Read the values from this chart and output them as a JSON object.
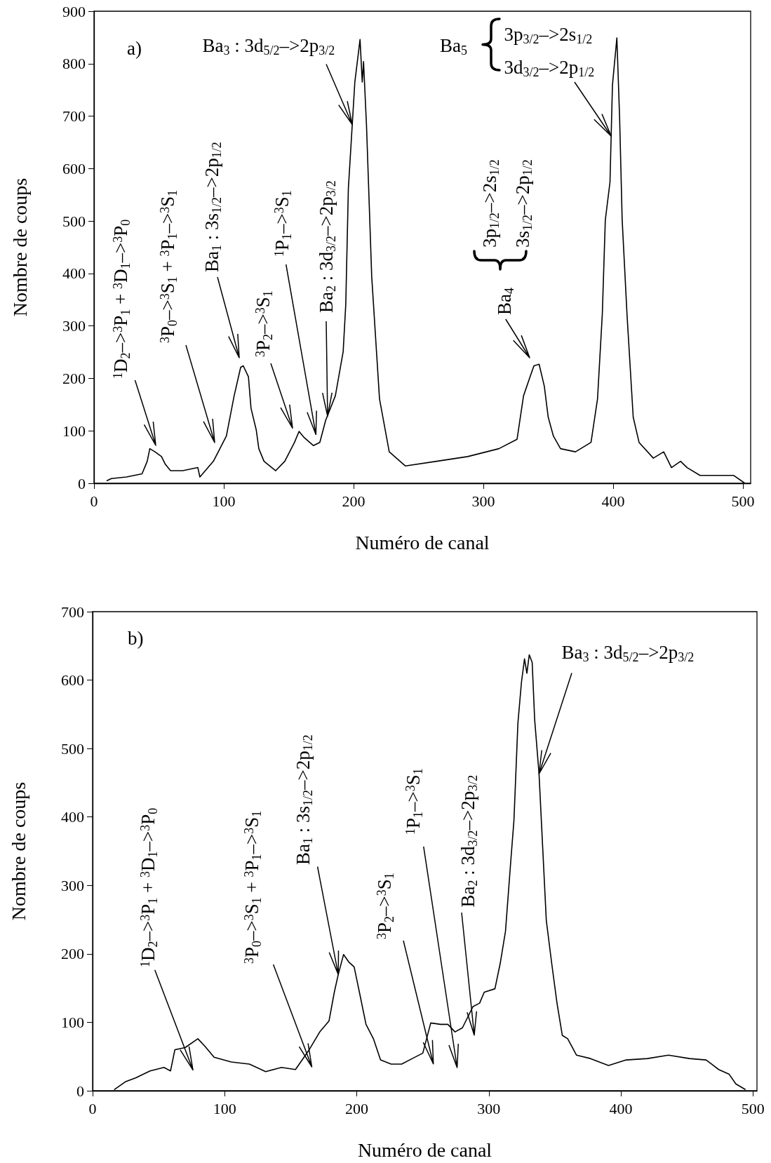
{
  "chart_data": [
    {
      "type": "line",
      "title": "a)",
      "xlabel": "Numéro de canal",
      "ylabel": "Nombre de coups",
      "color": "#000000",
      "marker": "none",
      "line_style": "solid",
      "grid": false,
      "xlim": [
        0,
        506
      ],
      "xticks": [
        0,
        100,
        200,
        300,
        400,
        500
      ],
      "ylim": [
        0,
        900
      ],
      "yticks": [
        0,
        100,
        200,
        300,
        400,
        500,
        600,
        700,
        800,
        900
      ],
      "x": [
        10,
        13.4,
        25,
        37,
        41,
        43,
        47,
        52,
        55,
        59,
        68.4,
        80,
        81.6,
        92,
        102,
        108,
        113,
        115,
        119,
        121,
        125,
        127,
        131,
        140,
        147,
        154.5,
        158,
        162,
        169,
        174,
        178.5,
        186,
        192,
        194,
        196,
        201,
        205,
        206.7,
        207.7,
        210,
        214,
        220,
        227.5,
        240,
        264,
        288,
        312,
        326,
        331,
        336,
        339,
        343,
        347,
        350,
        354,
        359.5,
        371,
        383,
        388,
        391.7,
        394,
        397.6,
        399.5,
        402.9,
        405,
        407,
        410.7,
        415.5,
        420,
        431,
        439,
        445,
        452,
        457,
        467,
        479,
        493,
        501
      ],
      "values": [
        5,
        9,
        12,
        18,
        42,
        66,
        60,
        51,
        36,
        24,
        24,
        30,
        12,
        42,
        90,
        167,
        221,
        224,
        203,
        143,
        102,
        66,
        42,
        24,
        42,
        78,
        99,
        87,
        72,
        78,
        120,
        167,
        251,
        341,
        562,
        765,
        846,
        765,
        804,
        681,
        394,
        161,
        60,
        33,
        42,
        51,
        66,
        84,
        167,
        203,
        224,
        227,
        185,
        126,
        90,
        66,
        60,
        78,
        161,
        323,
        502,
        574,
        759,
        849,
        699,
        502,
        323,
        126,
        78,
        48,
        60,
        30,
        42,
        30,
        15,
        15,
        15,
        1
      ],
      "annotations": [
        "$^{1}$D$_{2}$–>$^{3}$P$_{1}$ + $^{3}$D$_{1}$–>$^{3}$P$_{0}$",
        "$^{3}$P$_{0}$–>$^{3}$S$_{1}$ + $^{3}$P$_{1}$–>$^{3}$S$_{1}$",
        "Ba$_{1}$ : 3s$_{1/2}$–>2p$_{1/2}$",
        "$^{3}$P$_{2}$–>$^{3}$S$_{1}$",
        "$^{1}$P$_{1}$–>$^{3}$S$_{1}$",
        {
          "text": "Ba$_{2}$ : 3d$_{3/2}$–>2p$_{3/2}$",
          "x": 180,
          "y": 128
        },
        {
          "text": "Ba$_{3}$ : 3d$_{5/2}$–>2p$_{3/2}$",
          "x": 199,
          "y": 684
        },
        "Ba$_{4}$",
        "3p$_{1/2}$–>2s$_{1/2}$",
        "3s$_{1/2}$–>2p$_{1/2}$",
        "Ba$_{5}$",
        "3p$_{3/2}$–>2s$_{1/2}$",
        {
          "text": "3d$_{3/2}$–>2p$_{1/2}$",
          "x": 398.5,
          "y": 662
        }
      ]
    },
    {
      "type": "line",
      "title": "b)",
      "xlabel": "Numéro de canal",
      "ylabel": "Nombre de coups",
      "color": "#000000",
      "marker": "none",
      "line_style": "solid",
      "grid": false,
      "xlim": [
        0,
        503
      ],
      "xticks": [
        0,
        100,
        200,
        300,
        400,
        500
      ],
      "ylim": [
        0,
        700
      ],
      "yticks": [
        0,
        100,
        200,
        300,
        400,
        500,
        600,
        700
      ],
      "x": [
        16.6,
        24.7,
        32.8,
        43.5,
        54,
        59,
        62.3,
        70,
        79.7,
        85,
        92,
        105,
        118.7,
        131,
        143,
        153.6,
        164,
        172,
        179,
        183,
        186,
        190,
        194,
        198,
        202,
        207,
        212.6,
        218,
        226,
        234,
        242,
        250,
        256,
        263.6,
        269,
        274.4,
        280,
        288,
        293,
        296.5,
        304.6,
        308.6,
        312.6,
        316.7,
        319,
        322,
        324.7,
        327,
        328.8,
        330.6,
        332.8,
        334.7,
        338,
        340,
        343.5,
        347.6,
        351.6,
        355.6,
        359.7,
        366.4,
        377,
        390.6,
        404,
        420,
        436,
        452,
        464.5,
        474,
        482,
        487,
        494
      ],
      "values": [
        2,
        13,
        19,
        29,
        34,
        29,
        60,
        63,
        76,
        65,
        49,
        42,
        39,
        28,
        34,
        31,
        60,
        86,
        102,
        144,
        170,
        199,
        188,
        181,
        144,
        97,
        76,
        45,
        39,
        39,
        47,
        55,
        99,
        97,
        97,
        86,
        92,
        123,
        128,
        144,
        149,
        186,
        233,
        338,
        395,
        537,
        597,
        631,
        610,
        637,
        626,
        542,
        463,
        385,
        249,
        186,
        128,
        81,
        76,
        52,
        47,
        37,
        45,
        47,
        52,
        47,
        45,
        31,
        24,
        10,
        2
      ],
      "annotations": [
        "$^{1}$D$_{2}$–>$^{3}$P$_{1}$ + $^{3}$D$_{1}$–>$^{3}$P$_{0}$",
        "$^{3}$P$_{0}$–>$^{3}$S$_{1}$ + $^{3}$P$_{1}$–>$^{3}$S$_{1}$",
        {
          "text": "Ba$_{1}$ : 3s$_{1/2}$–>2p$_{1/2}$",
          "x": 186,
          "y": 170
        },
        "$^{3}$P$_{2}$–>$^{3}$S$_{1}$",
        "$^{1}$P$_{1}$–>$^{3}$S$_{1}$",
        "Ba$_{2}$ : 3d$_{3/2}$–>2p$_{3/2}$",
        {
          "text": "Ba$_{3}$ : 3d$_{5/2}$–>2p$_{3/2}$",
          "x": 338,
          "y": 463
        }
      ]
    }
  ]
}
